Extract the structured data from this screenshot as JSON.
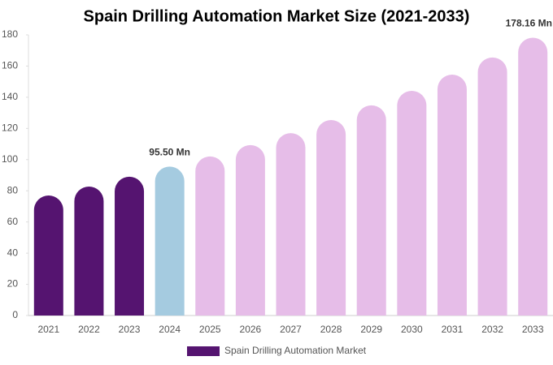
{
  "chart_data": {
    "type": "bar",
    "title": "Spain Drilling Automation Market Size (2021-2033)",
    "categories": [
      "2021",
      "2022",
      "2023",
      "2024",
      "2025",
      "2026",
      "2027",
      "2028",
      "2029",
      "2030",
      "2031",
      "2032",
      "2033"
    ],
    "series": [
      {
        "name": "Spain Drilling Automation Market",
        "color": "#551470",
        "values": [
          77,
          82.7,
          89,
          95.5,
          102,
          109.3,
          117,
          125.4,
          134.8,
          144.1,
          154.5,
          165.5,
          178.16
        ],
        "colors": [
          "#551470",
          "#551470",
          "#551470",
          "#a5cbe0",
          "#e6bde8",
          "#e6bde8",
          "#e6bde8",
          "#e6bde8",
          "#e6bde8",
          "#e6bde8",
          "#e6bde8",
          "#e6bde8",
          "#e6bde8"
        ],
        "value_labels": [
          null,
          null,
          null,
          "95.50 Mn",
          null,
          null,
          null,
          null,
          null,
          null,
          null,
          null,
          "178.16 Mn"
        ]
      }
    ],
    "ylim": [
      0,
      180
    ],
    "yticks": [
      0,
      20,
      40,
      60,
      80,
      100,
      120,
      140,
      160,
      180
    ],
    "grid": false,
    "legend": "bottom"
  }
}
